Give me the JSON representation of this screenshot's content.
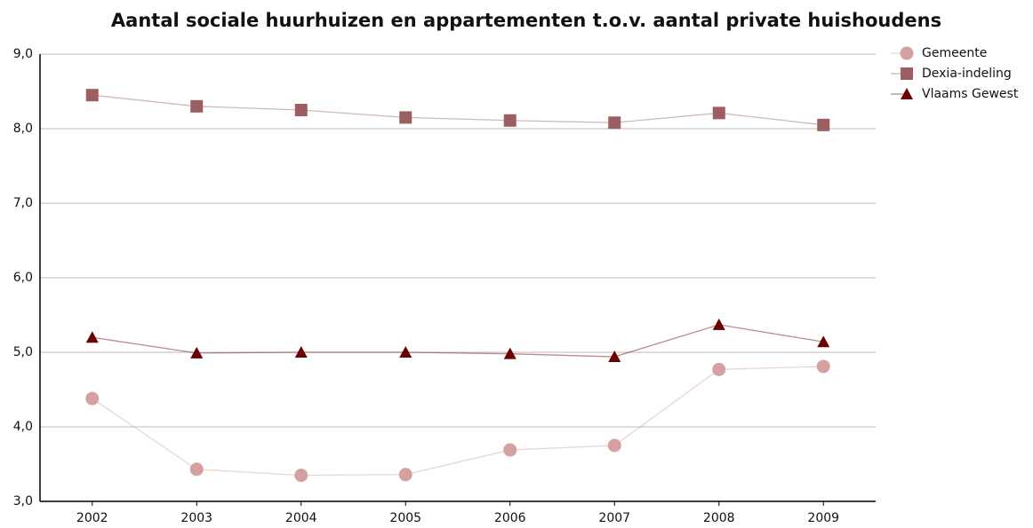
{
  "chart_data": {
    "type": "line",
    "title": "Aantal sociale huurhuizen en appartementen t.o.v. aantal private huishoudens",
    "categories": [
      "2002",
      "2003",
      "2004",
      "2005",
      "2006",
      "2007",
      "2008",
      "2009"
    ],
    "series": [
      {
        "name": "Gemeente",
        "color": "#d4a0a0",
        "marker": "circle",
        "values": [
          4.38,
          3.43,
          3.35,
          3.36,
          3.69,
          3.75,
          4.77,
          4.81
        ]
      },
      {
        "name": "Dexia-indeling",
        "color": "#9b5f61",
        "marker": "square",
        "values": [
          8.45,
          8.3,
          8.25,
          8.15,
          8.11,
          8.08,
          8.21,
          8.05
        ]
      },
      {
        "name": "Vlaams Gewest",
        "color": "#6b0000",
        "marker": "triangle",
        "values": [
          5.2,
          4.99,
          5.0,
          5.0,
          4.98,
          4.94,
          5.37,
          5.14
        ]
      }
    ],
    "ylim": [
      3,
      9
    ],
    "yticks": [
      {
        "value": 3,
        "label": "3,0"
      },
      {
        "value": 4,
        "label": "4,0"
      },
      {
        "value": 5,
        "label": "5,0"
      },
      {
        "value": 6,
        "label": "6,0"
      },
      {
        "value": 7,
        "label": "7,0"
      },
      {
        "value": 8,
        "label": "8,0"
      },
      {
        "value": 9,
        "label": "9,0"
      }
    ],
    "grid": true,
    "legend": "top-right"
  }
}
